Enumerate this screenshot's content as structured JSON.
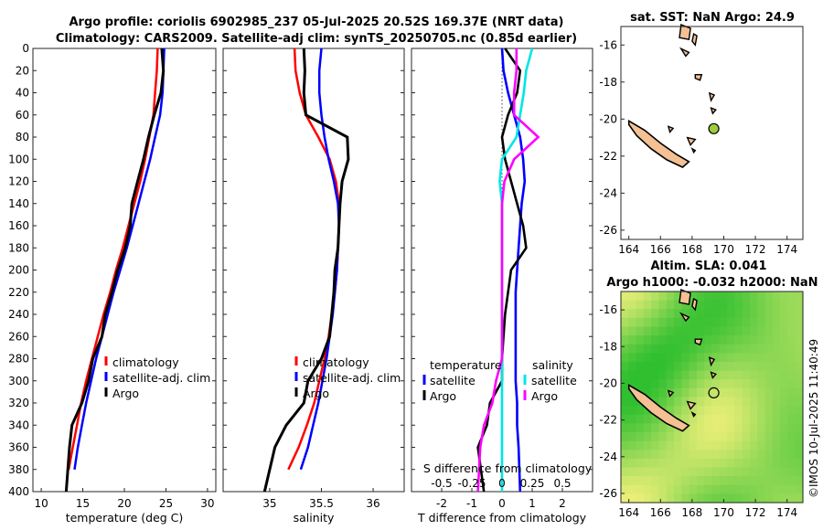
{
  "title": {
    "line1": "Argo profile: coriolis 6902985_237 05-Jul-2025 20.52S 169.37E (NRT data)",
    "line2": "Climatology: CARS2009. Satellite-adj clim: synTS_20250705.nc (0.85d earlier)"
  },
  "colors": {
    "climatology": "#ff0000",
    "satellite": "#0000ff",
    "argo": "#000000",
    "sal_satellite": "#00e5e5",
    "sal_argo": "#ff00ff",
    "land": "#f4c094",
    "sla_low": "#2fbf2f",
    "sla_high": "#f0f07a"
  },
  "depth_ticks": [
    "0",
    "20",
    "40",
    "60",
    "80",
    "100",
    "120",
    "140",
    "160",
    "180",
    "200",
    "220",
    "240",
    "260",
    "280",
    "300",
    "320",
    "340",
    "360",
    "380",
    "400"
  ],
  "watermark": "©IMOS 10-Jul-2025 11:40:49",
  "chart_data": [
    {
      "type": "line",
      "title": "",
      "xlabel": "temperature (deg C)",
      "ylabel": "",
      "xlim": [
        9,
        31
      ],
      "ylim": [
        400,
        0
      ],
      "xticks": [
        "10",
        "15",
        "20",
        "25",
        "30"
      ],
      "legend": [
        "climatology",
        "satellite-adj. clim",
        "Argo"
      ],
      "series": [
        {
          "name": "climatology",
          "x": [
            24.0,
            23.9,
            23.7,
            23.5,
            23.0,
            22.5,
            21.9,
            21.2,
            20.5,
            19.8,
            19.0,
            18.3,
            17.5,
            16.8,
            16.1,
            15.4,
            14.8,
            14.3,
            13.8,
            13.3
          ],
          "y": [
            0,
            20,
            40,
            60,
            80,
            100,
            120,
            140,
            160,
            180,
            200,
            220,
            240,
            260,
            280,
            300,
            320,
            340,
            360,
            380
          ]
        },
        {
          "name": "satellite-adj. clim",
          "x": [
            24.8,
            24.7,
            24.6,
            24.3,
            23.7,
            23.1,
            22.4,
            21.7,
            21.0,
            20.3,
            19.5,
            18.7,
            18.0,
            17.3,
            16.6,
            16.0,
            15.4,
            14.9,
            14.4,
            14.0
          ],
          "y": [
            0,
            20,
            40,
            60,
            80,
            100,
            120,
            140,
            160,
            180,
            200,
            220,
            240,
            260,
            280,
            300,
            320,
            340,
            360,
            380
          ]
        },
        {
          "name": "Argo",
          "x": [
            24.5,
            24.7,
            24.4,
            23.6,
            22.9,
            22.3,
            21.6,
            20.9,
            20.7,
            20.1,
            19.2,
            18.5,
            17.7,
            17.3,
            16.2,
            15.7,
            14.9,
            13.7,
            13.4,
            13.0
          ],
          "y": [
            0,
            20,
            40,
            60,
            80,
            100,
            120,
            140,
            160,
            180,
            200,
            220,
            240,
            260,
            280,
            300,
            320,
            340,
            360,
            400
          ]
        }
      ]
    },
    {
      "type": "line",
      "xlabel": "salinity",
      "xlim": [
        34.55,
        36.3
      ],
      "ylim": [
        400,
        0
      ],
      "xticks": [
        "35",
        "35.5",
        "36"
      ],
      "legend": [
        "climatology",
        "satellite-adj. clim",
        "Argo"
      ],
      "series": [
        {
          "name": "climatology",
          "x": [
            35.24,
            35.25,
            35.29,
            35.35,
            35.47,
            35.58,
            35.64,
            35.67,
            35.67,
            35.66,
            35.65,
            35.63,
            35.6,
            35.57,
            35.53,
            35.48,
            35.43,
            35.36,
            35.28,
            35.18
          ],
          "y": [
            0,
            20,
            40,
            60,
            80,
            100,
            120,
            140,
            160,
            180,
            200,
            220,
            240,
            260,
            280,
            300,
            320,
            340,
            360,
            380
          ]
        },
        {
          "name": "satellite-adj. clim",
          "x": [
            35.5,
            35.48,
            35.48,
            35.5,
            35.53,
            35.57,
            35.62,
            35.66,
            35.67,
            35.66,
            35.65,
            35.63,
            35.61,
            35.58,
            35.55,
            35.51,
            35.47,
            35.42,
            35.37,
            35.3
          ],
          "y": [
            0,
            20,
            40,
            60,
            80,
            100,
            120,
            140,
            160,
            180,
            200,
            220,
            240,
            260,
            280,
            300,
            320,
            340,
            360,
            380
          ]
        },
        {
          "name": "Argo",
          "x": [
            35.33,
            35.34,
            35.33,
            35.35,
            35.75,
            35.76,
            35.7,
            35.68,
            35.67,
            35.66,
            35.63,
            35.62,
            35.6,
            35.58,
            35.5,
            35.37,
            35.33,
            35.16,
            35.05,
            34.95
          ],
          "y": [
            0,
            20,
            40,
            60,
            80,
            100,
            120,
            140,
            160,
            180,
            200,
            220,
            240,
            260,
            280,
            300,
            320,
            340,
            360,
            400
          ]
        }
      ]
    },
    {
      "type": "line",
      "xlabel": "T difference from climatology",
      "x2label": "S difference from climatology",
      "xlim": [
        -3,
        3
      ],
      "x2lim": [
        -0.75,
        0.75
      ],
      "ylim": [
        400,
        0
      ],
      "xticks": [
        "-2",
        "-1",
        "0",
        "1",
        "2"
      ],
      "x2ticks": [
        "-0.5",
        "-0.25",
        "0",
        "0.25",
        "0.5"
      ],
      "legend_temperature": {
        "title": "temperature",
        "items": [
          "satellite",
          "Argo"
        ]
      },
      "legend_salinity": {
        "title": "salinity",
        "items": [
          "satellite",
          "Argo"
        ]
      },
      "series": [
        {
          "name": "temperature satellite",
          "x": [
            0.0,
            0.05,
            0.2,
            0.4,
            0.6,
            0.7,
            0.75,
            0.65,
            0.6,
            0.55,
            0.5,
            0.45,
            0.45,
            0.45,
            0.45,
            0.45,
            0.5,
            0.5,
            0.55,
            0.6
          ],
          "y": [
            0,
            20,
            40,
            60,
            80,
            100,
            120,
            140,
            160,
            180,
            200,
            220,
            240,
            260,
            280,
            300,
            320,
            340,
            360,
            400
          ]
        },
        {
          "name": "temperature Argo",
          "x": [
            0.1,
            0.6,
            0.5,
            0.2,
            0.0,
            0.1,
            0.3,
            0.5,
            0.7,
            0.8,
            0.3,
            0.2,
            0.1,
            0.05,
            0.0,
            0.0,
            -0.4,
            -0.5,
            -0.8,
            -0.6
          ],
          "y": [
            0,
            20,
            40,
            60,
            80,
            100,
            120,
            140,
            160,
            180,
            200,
            220,
            240,
            260,
            280,
            300,
            320,
            340,
            360,
            400
          ]
        },
        {
          "name": "salinity satellite",
          "x": [
            0.25,
            0.2,
            0.18,
            0.15,
            0.12,
            0.0,
            -0.02,
            0.0,
            0.0,
            0.0,
            0.0,
            0.0,
            0.0,
            0.0,
            0.0,
            0.0,
            0.0,
            0.0,
            0.0,
            0.0
          ],
          "y": [
            0,
            20,
            40,
            60,
            80,
            100,
            120,
            140,
            160,
            180,
            200,
            220,
            240,
            260,
            280,
            300,
            320,
            340,
            360,
            400
          ]
        },
        {
          "name": "salinity Argo",
          "x": [
            0.12,
            0.12,
            0.1,
            0.1,
            0.3,
            0.1,
            0.02,
            0.0,
            0.0,
            0.0,
            0.0,
            0.0,
            0.0,
            0.0,
            0.0,
            -0.05,
            -0.08,
            -0.15,
            -0.18,
            -0.2
          ],
          "y": [
            0,
            20,
            40,
            60,
            80,
            100,
            120,
            140,
            160,
            180,
            200,
            220,
            240,
            260,
            280,
            300,
            320,
            340,
            360,
            400
          ]
        }
      ]
    },
    {
      "type": "map",
      "title": "sat. SST: NaN Argo: 24.9",
      "xlim": [
        163.5,
        175
      ],
      "ylim": [
        -26.5,
        -15
      ],
      "xticks": [
        "164",
        "166",
        "168",
        "170",
        "172",
        "174"
      ],
      "yticks": [
        "-16",
        "-18",
        "-20",
        "-22",
        "-24",
        "-26"
      ],
      "argo_position": [
        169.37,
        -20.52
      ]
    },
    {
      "type": "heatmap",
      "title_line1": "Altim. SLA: 0.041",
      "title_line2": "Argo h1000: -0.032 h2000: NaN",
      "xlim": [
        163.5,
        175
      ],
      "ylim": [
        -26.5,
        -15
      ],
      "xticks": [
        "164",
        "166",
        "168",
        "170",
        "172",
        "174"
      ],
      "yticks": [
        "-16",
        "-18",
        "-20",
        "-22",
        "-24",
        "-26"
      ],
      "argo_position": [
        169.37,
        -20.52
      ]
    }
  ]
}
